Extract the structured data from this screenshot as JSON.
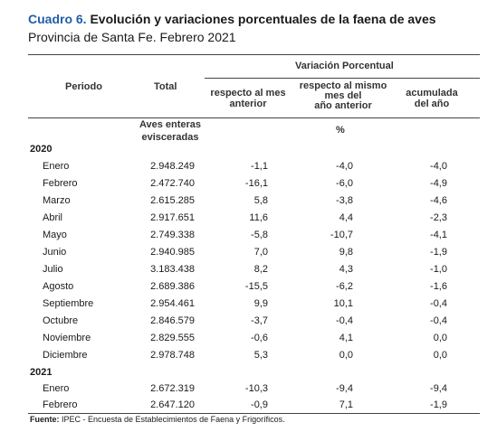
{
  "title_lead": "Cuadro 6.",
  "title_rest": "Evolución y variaciones porcentuales de la faena de aves",
  "subtitle": "Provincia de Santa Fe. Febrero 2021",
  "headers": {
    "periodo": "Periodo",
    "total": "Total",
    "variacion": "Variación Porcentual",
    "mes_l1": "respecto al mes",
    "mes_l2": "anterior",
    "anio_l1": "respecto al mismo",
    "anio_l2": "mes del",
    "anio_l3": "año anterior",
    "acum_l1": "acumulada",
    "acum_l2": "del año",
    "unit_l1": "Aves enteras",
    "unit_l2": "evisceradas",
    "unit_pct": "%"
  },
  "years": [
    {
      "year": "2020",
      "rows": [
        {
          "month": "Enero",
          "total": "2.948.249",
          "mes": "-1,1",
          "anio": "-4,0",
          "acum": "-4,0"
        },
        {
          "month": "Febrero",
          "total": "2.472.740",
          "mes": "-16,1",
          "anio": "-6,0",
          "acum": "-4,9"
        },
        {
          "month": "Marzo",
          "total": "2.615.285",
          "mes": "5,8",
          "anio": "-3,8",
          "acum": "-4,6"
        },
        {
          "month": "Abril",
          "total": "2.917.651",
          "mes": "11,6",
          "anio": "4,4",
          "acum": "-2,3"
        },
        {
          "month": "Mayo",
          "total": "2.749.338",
          "mes": "-5,8",
          "anio": "-10,7",
          "acum": "-4,1"
        },
        {
          "month": "Junio",
          "total": "2.940.985",
          "mes": "7,0",
          "anio": "9,8",
          "acum": "-1,9"
        },
        {
          "month": "Julio",
          "total": "3.183.438",
          "mes": "8,2",
          "anio": "4,3",
          "acum": "-1,0"
        },
        {
          "month": "Agosto",
          "total": "2.689.386",
          "mes": "-15,5",
          "anio": "-6,2",
          "acum": "-1,6"
        },
        {
          "month": "Septiembre",
          "total": "2.954.461",
          "mes": "9,9",
          "anio": "10,1",
          "acum": "-0,4"
        },
        {
          "month": "Octubre",
          "total": "2.846.579",
          "mes": "-3,7",
          "anio": "-0,4",
          "acum": "-0,4"
        },
        {
          "month": "Noviembre",
          "total": "2.829.555",
          "mes": "-0,6",
          "anio": "4,1",
          "acum": "0,0"
        },
        {
          "month": "Diciembre",
          "total": "2.978.748",
          "mes": "5,3",
          "anio": "0,0",
          "acum": "0,0"
        }
      ]
    },
    {
      "year": "2021",
      "rows": [
        {
          "month": "Enero",
          "total": "2.672.319",
          "mes": "-10,3",
          "anio": "-9,4",
          "acum": "-9,4"
        },
        {
          "month": "Febrero",
          "total": "2.647.120",
          "mes": "-0,9",
          "anio": "7,1",
          "acum": "-1,9"
        }
      ]
    }
  ],
  "source_label": "Fuente:",
  "source_text": "IPEC - Encuesta de Establecimientos de Faena y Frigoríficos."
}
